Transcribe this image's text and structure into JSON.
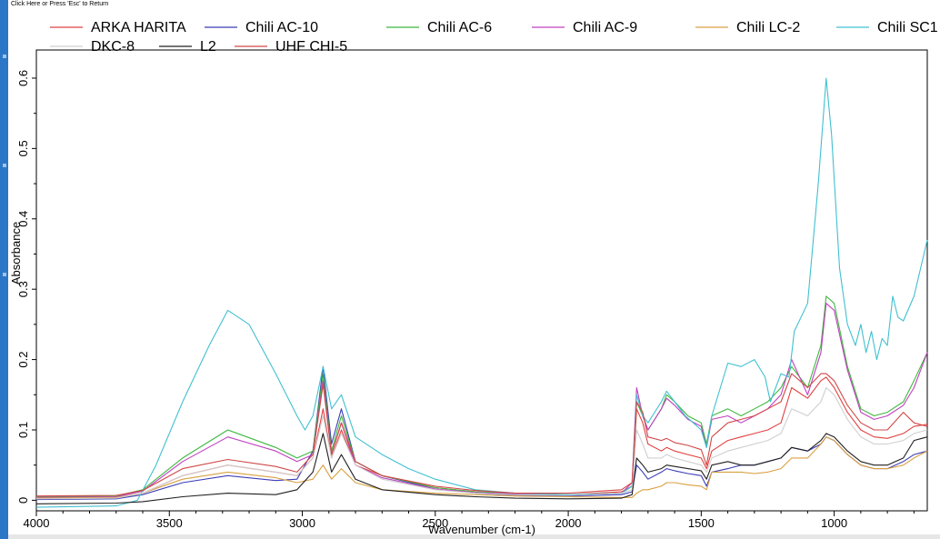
{
  "header": {
    "return_hint": "Click Here or Press 'Esc' to Return"
  },
  "chart_data": {
    "type": "line",
    "xlabel": "Wavenumber (cm-1)",
    "ylabel": "Absorbance",
    "xlim": [
      4000,
      650
    ],
    "ylim": [
      -0.015,
      0.64
    ],
    "x_reversed": true,
    "xticks": [
      4000,
      3500,
      3000,
      2500,
      2000,
      1500,
      1000
    ],
    "xtick_labels": [
      "4000",
      "3500",
      "3000",
      "2500",
      "2000",
      "1500",
      "1000"
    ],
    "yticks": [
      0,
      0.1,
      0.2,
      0.3,
      0.4,
      0.5,
      0.6
    ],
    "ytick_labels": [
      "0",
      "0.1",
      "0.2",
      "0.3",
      "0.4",
      "0.5",
      "0.6"
    ],
    "grid": false,
    "legend_position": "top",
    "series": [
      {
        "name": "ARKA HARITA",
        "color": "#e04040",
        "x": [
          4000,
          3700,
          3600,
          3450,
          3280,
          3100,
          3020,
          2960,
          2922,
          2890,
          2853,
          2800,
          2700,
          2500,
          2350,
          2200,
          2000,
          1800,
          1760,
          1743,
          1720,
          1700,
          1650,
          1630,
          1600,
          1550,
          1500,
          1480,
          1460,
          1400,
          1350,
          1300,
          1250,
          1200,
          1160,
          1100,
          1050,
          1030,
          1000,
          950,
          900,
          850,
          800,
          740,
          700,
          650
        ],
        "y": [
          0.003,
          0.004,
          0.01,
          0.035,
          0.05,
          0.04,
          0.035,
          0.06,
          0.13,
          0.06,
          0.1,
          0.05,
          0.035,
          0.018,
          0.012,
          0.008,
          0.008,
          0.012,
          0.02,
          0.13,
          0.11,
          0.08,
          0.07,
          0.075,
          0.07,
          0.065,
          0.06,
          0.045,
          0.07,
          0.085,
          0.09,
          0.095,
          0.1,
          0.11,
          0.16,
          0.145,
          0.17,
          0.175,
          0.16,
          0.125,
          0.1,
          0.09,
          0.088,
          0.095,
          0.105,
          0.108
        ]
      },
      {
        "name": "Chili AC-10",
        "color": "#3d3db8",
        "x": [
          4000,
          3700,
          3600,
          3450,
          3280,
          3100,
          3020,
          2960,
          2922,
          2890,
          2853,
          2800,
          2700,
          2500,
          2350,
          2200,
          2000,
          1800,
          1760,
          1743,
          1720,
          1700,
          1650,
          1630,
          1600,
          1550,
          1500,
          1480,
          1460,
          1400,
          1350,
          1300,
          1250,
          1200,
          1160,
          1100,
          1050,
          1030,
          1000,
          950,
          900,
          850,
          800,
          740,
          700,
          650
        ],
        "y": [
          0.001,
          0.002,
          0.008,
          0.025,
          0.035,
          0.028,
          0.03,
          0.07,
          0.19,
          0.08,
          0.13,
          0.055,
          0.035,
          0.016,
          0.01,
          0.007,
          0.006,
          0.008,
          0.012,
          0.05,
          0.04,
          0.03,
          0.04,
          0.045,
          0.042,
          0.038,
          0.035,
          0.02,
          0.04,
          0.045,
          0.05,
          0.05,
          0.055,
          0.06,
          0.075,
          0.07,
          0.08,
          0.09,
          0.085,
          0.065,
          0.05,
          0.045,
          0.045,
          0.055,
          0.065,
          0.07
        ]
      },
      {
        "name": "Chili AC-6",
        "color": "#3fb83f",
        "x": [
          4000,
          3700,
          3600,
          3450,
          3280,
          3100,
          3020,
          2960,
          2922,
          2890,
          2853,
          2800,
          2700,
          2500,
          2350,
          2200,
          2000,
          1800,
          1760,
          1743,
          1720,
          1700,
          1650,
          1630,
          1600,
          1550,
          1500,
          1480,
          1460,
          1400,
          1350,
          1300,
          1250,
          1200,
          1160,
          1100,
          1050,
          1030,
          1000,
          950,
          900,
          850,
          800,
          740,
          700,
          650
        ],
        "y": [
          0.005,
          0.006,
          0.015,
          0.06,
          0.1,
          0.075,
          0.06,
          0.07,
          0.18,
          0.07,
          0.12,
          0.055,
          0.035,
          0.018,
          0.012,
          0.01,
          0.008,
          0.01,
          0.02,
          0.14,
          0.12,
          0.1,
          0.13,
          0.15,
          0.14,
          0.12,
          0.11,
          0.08,
          0.12,
          0.13,
          0.12,
          0.13,
          0.14,
          0.16,
          0.19,
          0.16,
          0.22,
          0.29,
          0.28,
          0.19,
          0.13,
          0.12,
          0.125,
          0.14,
          0.17,
          0.21
        ]
      },
      {
        "name": "Chili AC-9",
        "color": "#c040c0",
        "x": [
          4000,
          3700,
          3600,
          3450,
          3280,
          3100,
          3020,
          2960,
          2922,
          2890,
          2853,
          2800,
          2700,
          2500,
          2350,
          2200,
          2000,
          1800,
          1760,
          1743,
          1720,
          1700,
          1650,
          1630,
          1600,
          1550,
          1500,
          1480,
          1460,
          1400,
          1350,
          1300,
          1250,
          1200,
          1160,
          1100,
          1050,
          1030,
          1000,
          950,
          900,
          850,
          800,
          740,
          700,
          650
        ],
        "y": [
          0.004,
          0.005,
          0.013,
          0.055,
          0.09,
          0.07,
          0.055,
          0.065,
          0.17,
          0.065,
          0.11,
          0.05,
          0.032,
          0.016,
          0.011,
          0.009,
          0.008,
          0.01,
          0.025,
          0.16,
          0.12,
          0.1,
          0.13,
          0.145,
          0.135,
          0.115,
          0.105,
          0.075,
          0.115,
          0.12,
          0.11,
          0.12,
          0.13,
          0.15,
          0.2,
          0.15,
          0.21,
          0.28,
          0.27,
          0.185,
          0.125,
          0.115,
          0.12,
          0.135,
          0.16,
          0.21
        ]
      },
      {
        "name": "Chili LC-2",
        "color": "#d9a040",
        "x": [
          4000,
          3700,
          3600,
          3450,
          3280,
          3100,
          3020,
          2960,
          2922,
          2890,
          2853,
          2800,
          2700,
          2500,
          2350,
          2200,
          2000,
          1800,
          1760,
          1743,
          1720,
          1700,
          1650,
          1630,
          1600,
          1550,
          1500,
          1480,
          1460,
          1400,
          1350,
          1300,
          1250,
          1200,
          1160,
          1100,
          1050,
          1030,
          1000,
          950,
          900,
          850,
          800,
          740,
          700,
          650
        ],
        "y": [
          0.003,
          0.004,
          0.01,
          0.03,
          0.04,
          0.032,
          0.025,
          0.03,
          0.05,
          0.03,
          0.045,
          0.025,
          0.015,
          0.01,
          0.008,
          0.006,
          0.005,
          0.004,
          0.004,
          0.01,
          0.015,
          0.015,
          0.02,
          0.025,
          0.025,
          0.022,
          0.02,
          0.015,
          0.04,
          0.04,
          0.04,
          0.038,
          0.04,
          0.045,
          0.06,
          0.06,
          0.08,
          0.09,
          0.085,
          0.065,
          0.05,
          0.045,
          0.045,
          0.05,
          0.06,
          0.07
        ]
      },
      {
        "name": "Chili SC1",
        "color": "#40c0d0",
        "x": [
          4000,
          3700,
          3620,
          3550,
          3450,
          3350,
          3280,
          3200,
          3100,
          3020,
          2990,
          2960,
          2922,
          2890,
          2853,
          2800,
          2700,
          2600,
          2500,
          2350,
          2200,
          2000,
          1800,
          1760,
          1743,
          1720,
          1700,
          1650,
          1630,
          1600,
          1560,
          1530,
          1500,
          1480,
          1460,
          1400,
          1350,
          1300,
          1260,
          1240,
          1200,
          1170,
          1150,
          1100,
          1060,
          1030,
          1010,
          980,
          950,
          920,
          900,
          880,
          860,
          840,
          820,
          800,
          780,
          760,
          740,
          700,
          650
        ],
        "y": [
          -0.01,
          -0.008,
          0.0,
          0.05,
          0.14,
          0.22,
          0.27,
          0.25,
          0.18,
          0.12,
          0.1,
          0.12,
          0.19,
          0.13,
          0.15,
          0.09,
          0.065,
          0.045,
          0.03,
          0.015,
          0.01,
          0.008,
          0.01,
          0.02,
          0.15,
          0.12,
          0.11,
          0.14,
          0.155,
          0.14,
          0.12,
          0.11,
          0.1,
          0.075,
          0.12,
          0.195,
          0.19,
          0.2,
          0.175,
          0.14,
          0.18,
          0.175,
          0.24,
          0.28,
          0.45,
          0.6,
          0.52,
          0.33,
          0.25,
          0.22,
          0.25,
          0.21,
          0.24,
          0.2,
          0.23,
          0.22,
          0.29,
          0.26,
          0.255,
          0.29,
          0.37
        ]
      },
      {
        "name": "DKC-8",
        "color": "#cfcfcf",
        "x": [
          4000,
          3700,
          3600,
          3450,
          3280,
          3100,
          3020,
          2960,
          2922,
          2890,
          2853,
          2800,
          2700,
          2500,
          2350,
          2200,
          2000,
          1800,
          1760,
          1743,
          1720,
          1700,
          1650,
          1630,
          1600,
          1550,
          1500,
          1480,
          1460,
          1400,
          1350,
          1300,
          1250,
          1200,
          1160,
          1100,
          1050,
          1030,
          1000,
          950,
          900,
          850,
          800,
          740,
          700,
          650
        ],
        "y": [
          0.002,
          0.003,
          0.01,
          0.035,
          0.05,
          0.04,
          0.035,
          0.06,
          0.12,
          0.06,
          0.095,
          0.05,
          0.03,
          0.015,
          0.01,
          0.008,
          0.007,
          0.01,
          0.015,
          0.1,
          0.08,
          0.06,
          0.06,
          0.065,
          0.06,
          0.055,
          0.05,
          0.04,
          0.06,
          0.07,
          0.075,
          0.08,
          0.085,
          0.095,
          0.13,
          0.12,
          0.14,
          0.16,
          0.15,
          0.115,
          0.09,
          0.08,
          0.08,
          0.085,
          0.095,
          0.1
        ]
      },
      {
        "name": "L2",
        "color": "#202020",
        "x": [
          4000,
          3700,
          3600,
          3450,
          3280,
          3100,
          3020,
          2960,
          2922,
          2890,
          2853,
          2800,
          2700,
          2500,
          2350,
          2200,
          2000,
          1800,
          1760,
          1743,
          1720,
          1700,
          1650,
          1630,
          1600,
          1550,
          1500,
          1480,
          1460,
          1400,
          1350,
          1300,
          1250,
          1200,
          1160,
          1100,
          1050,
          1030,
          1000,
          950,
          900,
          850,
          800,
          740,
          700,
          650
        ],
        "y": [
          -0.005,
          -0.004,
          -0.002,
          0.005,
          0.01,
          0.008,
          0.015,
          0.04,
          0.095,
          0.04,
          0.065,
          0.03,
          0.015,
          0.008,
          0.005,
          0.003,
          0.002,
          0.003,
          0.008,
          0.06,
          0.05,
          0.04,
          0.045,
          0.05,
          0.048,
          0.045,
          0.042,
          0.03,
          0.05,
          0.055,
          0.05,
          0.05,
          0.055,
          0.06,
          0.075,
          0.07,
          0.085,
          0.095,
          0.09,
          0.07,
          0.055,
          0.05,
          0.05,
          0.06,
          0.085,
          0.09
        ]
      },
      {
        "name": "UHF CHI-5",
        "color": "#d04848",
        "x": [
          4000,
          3700,
          3600,
          3450,
          3280,
          3100,
          3020,
          2960,
          2922,
          2890,
          2853,
          2800,
          2700,
          2500,
          2350,
          2200,
          2000,
          1800,
          1760,
          1743,
          1720,
          1700,
          1650,
          1630,
          1600,
          1550,
          1500,
          1480,
          1460,
          1400,
          1350,
          1300,
          1250,
          1200,
          1160,
          1100,
          1050,
          1030,
          1000,
          950,
          900,
          850,
          800,
          740,
          700,
          650
        ],
        "y": [
          0.006,
          0.007,
          0.014,
          0.045,
          0.058,
          0.048,
          0.04,
          0.065,
          0.165,
          0.065,
          0.11,
          0.055,
          0.035,
          0.02,
          0.014,
          0.01,
          0.01,
          0.015,
          0.025,
          0.14,
          0.125,
          0.09,
          0.085,
          0.088,
          0.082,
          0.078,
          0.072,
          0.05,
          0.09,
          0.11,
          0.115,
          0.12,
          0.13,
          0.14,
          0.18,
          0.16,
          0.18,
          0.18,
          0.17,
          0.135,
          0.11,
          0.1,
          0.1,
          0.125,
          0.11,
          0.105
        ]
      }
    ]
  }
}
